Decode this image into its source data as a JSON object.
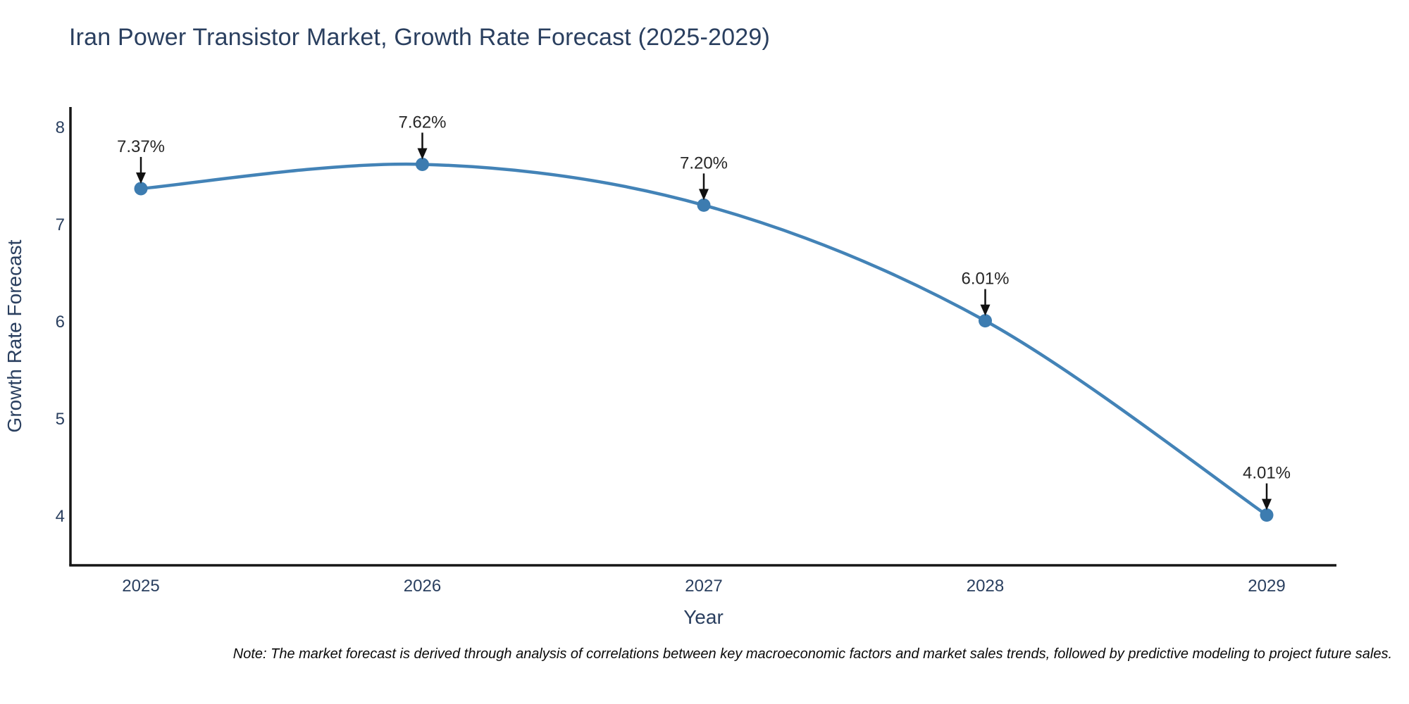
{
  "chart_data": {
    "type": "line",
    "title": "Iran Power Transistor Market, Growth Rate Forecast (2025-2029)",
    "x": [
      2025,
      2026,
      2027,
      2028,
      2029
    ],
    "xticks": [
      "2025",
      "2026",
      "2027",
      "2028",
      "2029"
    ],
    "series": [
      {
        "name": "Growth Rate Forecast",
        "values": [
          7.37,
          7.62,
          7.2,
          6.01,
          4.01
        ]
      }
    ],
    "point_labels": [
      "7.37%",
      "7.62%",
      "7.20%",
      "6.01%",
      "4.01%"
    ],
    "xlabel": "Year",
    "ylabel": "Growth Rate Forecast",
    "yticks": [
      4,
      5,
      6,
      7,
      8
    ],
    "ylim": [
      3.5,
      8.2
    ],
    "xlim": [
      2024.75,
      2029.25
    ],
    "grid": false,
    "legend": "none",
    "line_shape": "spline",
    "note": "Note: The market forecast is derived through analysis of correlations between key macroeconomic factors and market sales trends, followed by predictive modeling to project future sales.",
    "colors": {
      "line": "#4383b7",
      "marker": "#3d7cb0",
      "axis": "#161616",
      "text": "#2a3f5f",
      "annotation": "#262626",
      "arrow": "#111111"
    }
  }
}
